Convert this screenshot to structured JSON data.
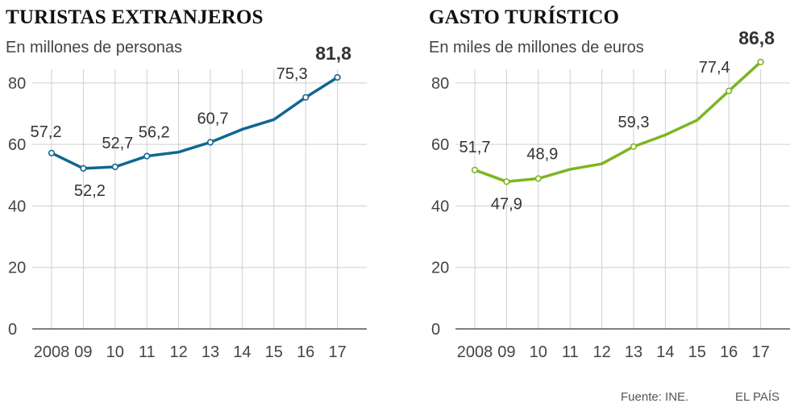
{
  "chart_data": [
    {
      "type": "line",
      "title": "TURISTAS EXTRANJEROS",
      "subtitle": "En millones de personas",
      "categories": [
        "2008",
        "09",
        "10",
        "11",
        "12",
        "13",
        "14",
        "15",
        "16",
        "17"
      ],
      "values": [
        57.2,
        52.2,
        52.7,
        56.2,
        57.5,
        60.7,
        64.9,
        68.1,
        75.3,
        81.8
      ],
      "point_markers": [
        true,
        true,
        true,
        true,
        false,
        true,
        false,
        false,
        true,
        true
      ],
      "labels": [
        {
          "index": 0,
          "text": "57,2",
          "bold": false
        },
        {
          "index": 1,
          "text": "52,2",
          "bold": false
        },
        {
          "index": 2,
          "text": "52,7",
          "bold": false
        },
        {
          "index": 3,
          "text": "56,2",
          "bold": false
        },
        {
          "index": 5,
          "text": "60,7",
          "bold": false
        },
        {
          "index": 8,
          "text": "75,3",
          "bold": false
        },
        {
          "index": 9,
          "text": "81,8",
          "bold": true
        }
      ],
      "y_ticks": [
        0,
        20,
        40,
        60,
        80
      ],
      "ylim": [
        0,
        86
      ],
      "grid": true,
      "color": "#0f6890"
    },
    {
      "type": "line",
      "title": "GASTO TURÍSTICO",
      "subtitle": "En miles de millones de euros",
      "categories": [
        "2008",
        "09",
        "10",
        "11",
        "12",
        "13",
        "14",
        "15",
        "16",
        "17"
      ],
      "values": [
        51.7,
        47.9,
        48.9,
        51.9,
        53.7,
        59.3,
        63.1,
        67.9,
        77.4,
        86.8
      ],
      "point_markers": [
        true,
        true,
        true,
        false,
        false,
        true,
        false,
        false,
        true,
        true
      ],
      "labels": [
        {
          "index": 0,
          "text": "51,7",
          "bold": false
        },
        {
          "index": 1,
          "text": "47,9",
          "bold": false
        },
        {
          "index": 2,
          "text": "48,9",
          "bold": false
        },
        {
          "index": 5,
          "text": "59,3",
          "bold": false
        },
        {
          "index": 8,
          "text": "77,4",
          "bold": false
        },
        {
          "index": 9,
          "text": "86,8",
          "bold": true
        }
      ],
      "y_ticks": [
        0,
        20,
        40,
        60,
        80
      ],
      "ylim": [
        0,
        86
      ],
      "grid": true,
      "color": "#7db521"
    }
  ],
  "footer": {
    "source": "Fuente: INE.",
    "brand": "EL PAÍS"
  }
}
